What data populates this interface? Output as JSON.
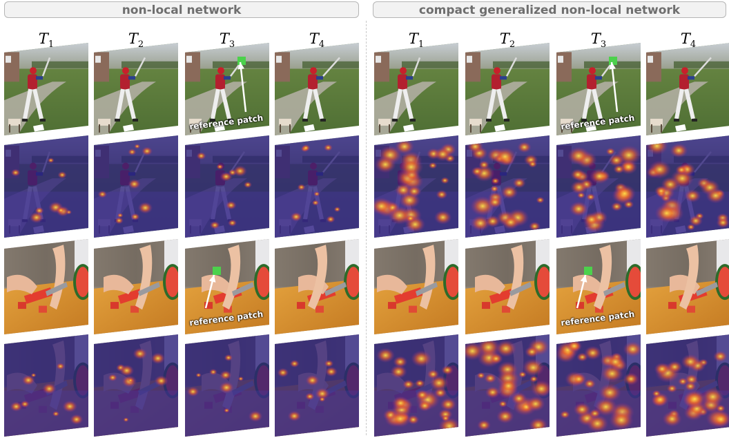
{
  "headers": {
    "left": "non-local network",
    "right": "compact generalized non-local network"
  },
  "time_labels": [
    {
      "base": "T",
      "sub": "1"
    },
    {
      "base": "T",
      "sub": "2"
    },
    {
      "base": "T",
      "sub": "3"
    },
    {
      "base": "T",
      "sub": "4"
    }
  ],
  "annotations": {
    "reference_patch": "reference patch"
  },
  "colors": {
    "reference_marker": "#4cd14c",
    "heatmap_low": "#2a1f7a",
    "heatmap_high": "#ffd23a",
    "header_text": "#6e6e6e"
  },
  "rows": [
    {
      "scene": "baseball-batter",
      "kind": "photo"
    },
    {
      "scene": "baseball-batter",
      "kind": "attention-heatmap"
    },
    {
      "scene": "watermelon-cutting",
      "kind": "photo"
    },
    {
      "scene": "watermelon-cutting",
      "kind": "attention-heatmap"
    }
  ]
}
